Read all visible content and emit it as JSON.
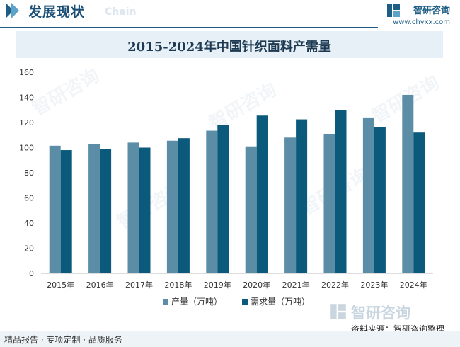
{
  "header": {
    "title": "发展现状",
    "subtitle": "Chain",
    "brand_name": "智研咨询",
    "brand_url": "www.chyxx.com"
  },
  "watermark": "智研咨询",
  "footer": {
    "left_text": "精品报告 · 专项定制 · 品质服务",
    "source": "资料来源：智研咨询整理",
    "logo_text": "智研咨询"
  },
  "colors": {
    "series1": "#5b8ea6",
    "series2": "#0b5a7c",
    "accent": "#1e5d86"
  },
  "chart_data": {
    "type": "bar",
    "title": "2015-2024年中国针织面料产需量",
    "categories": [
      "2015年",
      "2016年",
      "2017年",
      "2018年",
      "2019年",
      "2020年",
      "2021年",
      "2022年",
      "2023年",
      "2024年"
    ],
    "series": [
      {
        "name": "产量（万吨）",
        "values": [
          101.5,
          103,
          104,
          105.5,
          113.5,
          101,
          108,
          111,
          124,
          142
        ]
      },
      {
        "name": "需求量（万吨）",
        "values": [
          98,
          99,
          100,
          107.5,
          118,
          125.5,
          122.5,
          130,
          116.5,
          112
        ]
      }
    ],
    "ylim": [
      0,
      160
    ],
    "yticks": [
      0,
      20,
      40,
      60,
      80,
      100,
      120,
      140,
      160
    ],
    "grid": false,
    "legend": "bottom"
  }
}
